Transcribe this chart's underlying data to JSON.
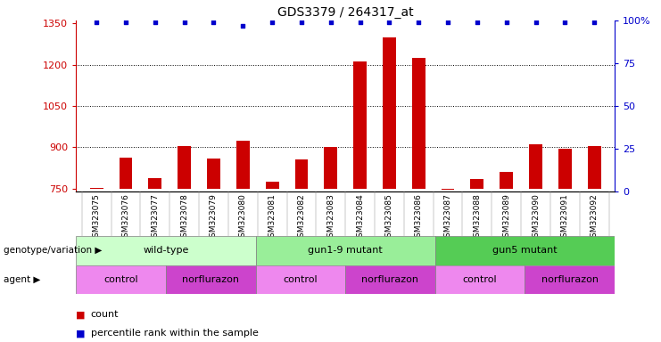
{
  "title": "GDS3379 / 264317_at",
  "samples": [
    "GSM323075",
    "GSM323076",
    "GSM323077",
    "GSM323078",
    "GSM323079",
    "GSM323080",
    "GSM323081",
    "GSM323082",
    "GSM323083",
    "GSM323084",
    "GSM323085",
    "GSM323086",
    "GSM323087",
    "GSM323088",
    "GSM323089",
    "GSM323090",
    "GSM323091",
    "GSM323092"
  ],
  "counts": [
    752,
    862,
    790,
    905,
    860,
    925,
    775,
    855,
    900,
    1210,
    1300,
    1225,
    748,
    785,
    810,
    910,
    895,
    905
  ],
  "percentile_ranks": [
    99,
    99,
    99,
    99,
    99,
    97,
    99,
    99,
    99,
    99,
    99,
    99,
    99,
    99,
    99,
    99,
    99,
    99
  ],
  "bar_color": "#cc0000",
  "dot_color": "#0000cc",
  "ylim_left": [
    740,
    1360
  ],
  "yticks_left": [
    750,
    900,
    1050,
    1200,
    1350
  ],
  "ylim_right": [
    0,
    100
  ],
  "yticks_right": [
    0,
    25,
    50,
    75,
    100
  ],
  "grid_values": [
    900,
    1050,
    1200
  ],
  "genotype_groups": [
    {
      "label": "wild-type",
      "start": 0,
      "end": 5,
      "color": "#ccffcc"
    },
    {
      "label": "gun1-9 mutant",
      "start": 6,
      "end": 11,
      "color": "#99ee99"
    },
    {
      "label": "gun5 mutant",
      "start": 12,
      "end": 17,
      "color": "#55cc55"
    }
  ],
  "agent_groups": [
    {
      "label": "control",
      "start": 0,
      "end": 2,
      "color": "#ee88ee"
    },
    {
      "label": "norflurazon",
      "start": 3,
      "end": 5,
      "color": "#cc44cc"
    },
    {
      "label": "control",
      "start": 6,
      "end": 8,
      "color": "#ee88ee"
    },
    {
      "label": "norflurazon",
      "start": 9,
      "end": 11,
      "color": "#cc44cc"
    },
    {
      "label": "control",
      "start": 12,
      "end": 14,
      "color": "#ee88ee"
    },
    {
      "label": "norflurazon",
      "start": 15,
      "end": 17,
      "color": "#cc44cc"
    }
  ],
  "legend_count_label": "count",
  "legend_pct_label": "percentile rank within the sample",
  "genotype_label": "genotype/variation",
  "agent_label": "agent",
  "left_axis_color": "#cc0000",
  "right_axis_color": "#0000cc",
  "xtick_bg_color": "#dddddd",
  "ybase": 750
}
